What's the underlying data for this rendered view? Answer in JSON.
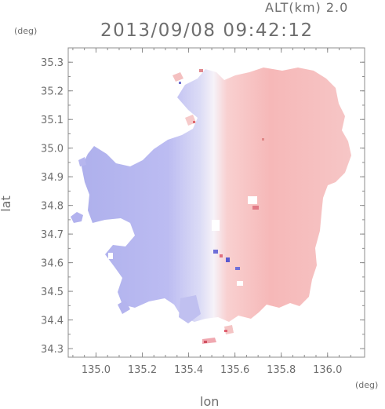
{
  "header": {
    "altitude_label": "ALT(km) 2.0",
    "timestamp": "2013/09/08 09:42:12"
  },
  "axes": {
    "x_label": "lon",
    "y_label": "lat",
    "x_unit": "(deg)",
    "y_unit": "(deg)",
    "x_ticks": [
      "135.0",
      "135.2",
      "135.4",
      "135.6",
      "135.8",
      "136.0"
    ],
    "x_tick_values": [
      135.0,
      135.2,
      135.4,
      135.6,
      135.8,
      136.0
    ],
    "y_ticks": [
      "34.3",
      "34.4",
      "34.5",
      "34.6",
      "34.7",
      "34.8",
      "34.9",
      "35.0",
      "35.1",
      "35.2",
      "35.3"
    ],
    "y_tick_values": [
      34.3,
      34.4,
      34.5,
      34.6,
      34.7,
      34.8,
      34.9,
      35.0,
      35.1,
      35.2,
      35.3
    ],
    "x_range": [
      134.88,
      136.16
    ],
    "y_range": [
      34.27,
      35.35
    ]
  },
  "colors": {
    "negative": "#b4b4f0",
    "positive": "#f5b4b4",
    "neutral": "#f4f2fa",
    "frame": "#8c8c8c"
  }
}
